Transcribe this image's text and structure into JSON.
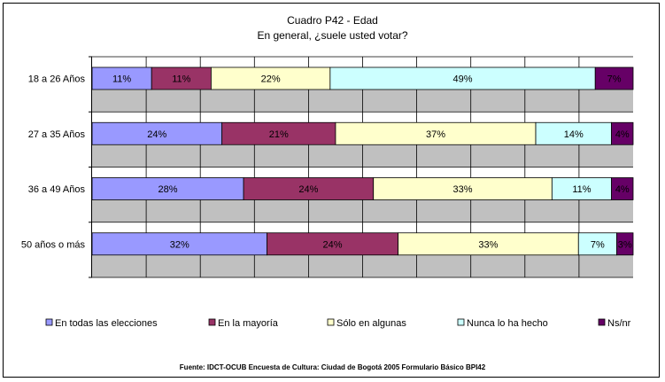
{
  "header": {
    "title": "Cuadro P42 - Edad",
    "subtitle": "En general, ¿suele usted votar?"
  },
  "footer": {
    "source": "Fuente: IDCT-OCUB Encuesta de Cultura: Ciudad de Bogotá 2005 Formulario Básico BPI42"
  },
  "chart_data": {
    "type": "bar",
    "orientation": "horizontal",
    "stacked": "percent",
    "categories": [
      "18 a 26 Años",
      "27 a 35 Años",
      "36 a 49 Años",
      "50 años o más"
    ],
    "series": [
      {
        "name": "En todas las elecciones",
        "color": "#9999ff",
        "values": [
          11,
          24,
          28,
          32
        ],
        "labels": [
          "11%",
          "24%",
          "28%",
          "32%"
        ]
      },
      {
        "name": "En la mayoría",
        "color": "#993366",
        "values": [
          11,
          21,
          24,
          24
        ],
        "labels": [
          "11%",
          "21%",
          "24%",
          "24%"
        ]
      },
      {
        "name": "Sólo en algunas",
        "color": "#ffffcc",
        "values": [
          22,
          37,
          33,
          33
        ],
        "labels": [
          "22%",
          "37%",
          "33%",
          "33%"
        ]
      },
      {
        "name": "Nunca lo ha hecho",
        "color": "#ccffff",
        "values": [
          49,
          14,
          11,
          7
        ],
        "labels": [
          "49%",
          "14%",
          "11%",
          "7%"
        ]
      },
      {
        "name": "Ns/nr",
        "color": "#660066",
        "values": [
          7,
          4,
          4,
          3
        ],
        "labels": [
          "7%",
          "4%",
          "4%",
          "3%"
        ]
      }
    ],
    "xlim": [
      0,
      100
    ],
    "grid": true,
    "legend_position": "bottom"
  }
}
